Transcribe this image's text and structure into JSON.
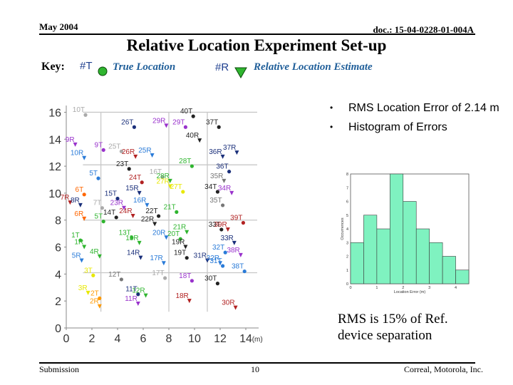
{
  "header": {
    "date": "May 2004",
    "doc_id": "doc.: 15-04-0228-01-004A"
  },
  "title": "Relative Location Experiment Set-up",
  "key": {
    "label": "Key:",
    "true_tag": "#T",
    "true_label": "True Location",
    "est_tag": "#R",
    "est_label": "Relative Location Estimate"
  },
  "bullets": [
    "RMS Location Error of 2.14 m",
    "Histogram of Errors"
  ],
  "rms_note": "RMS is 15% of Ref. device separation",
  "footer": {
    "left": "Submission",
    "page": "10",
    "right": "Correal, Motorola, Inc."
  },
  "chart_data": [
    {
      "type": "scatter",
      "title": "",
      "xlabel": "(m)",
      "ylabel": "",
      "xlim": [
        0,
        15
      ],
      "ylim": [
        0,
        16.5
      ],
      "xticks": [
        0,
        2,
        4,
        6,
        8,
        10,
        12,
        14
      ],
      "yticks": [
        0,
        2,
        4,
        6,
        8,
        10,
        12,
        14,
        16
      ],
      "grid_lines_x": [
        2.7,
        8,
        11
      ],
      "grid_lines_y": [
        4.1,
        8,
        12.1,
        16
      ],
      "true_points": [
        {
          "id": "1T",
          "x": 1.1,
          "y": 6.5,
          "c": "#2fb52f"
        },
        {
          "id": "2T",
          "x": 2.6,
          "y": 2.2,
          "c": "#ff9900"
        },
        {
          "id": "3T",
          "x": 2.1,
          "y": 3.9,
          "c": "#e8e800"
        },
        {
          "id": "5T",
          "x": 2.5,
          "y": 11.1,
          "c": "#2a7bd8"
        },
        {
          "id": "5T",
          "x": 2.9,
          "y": 7.9,
          "c": "#2fb52f"
        },
        {
          "id": "6T",
          "x": 1.4,
          "y": 9.9,
          "c": "#ff6600"
        },
        {
          "id": "7T",
          "x": 2.8,
          "y": 8.9,
          "c": "#aaaaaa"
        },
        {
          "id": "9T",
          "x": 2.9,
          "y": 13.2,
          "c": "#9932cc"
        },
        {
          "id": "10T",
          "x": 1.5,
          "y": 15.8,
          "c": "#aaaaaa"
        },
        {
          "id": "11T",
          "x": 5.6,
          "y": 2.5,
          "c": "#1a2f7a"
        },
        {
          "id": "12T",
          "x": 4.3,
          "y": 3.6,
          "c": "#777777"
        },
        {
          "id": "13T",
          "x": 5.1,
          "y": 6.7,
          "c": "#2fb52f"
        },
        {
          "id": "14T",
          "x": 3.9,
          "y": 8.2,
          "c": "#222222"
        },
        {
          "id": "15T",
          "x": 4.0,
          "y": 9.6,
          "c": "#1a2f7a"
        },
        {
          "id": "16T",
          "x": 7.5,
          "y": 11.2,
          "c": "#aaaaaa"
        },
        {
          "id": "17T",
          "x": 7.7,
          "y": 3.7,
          "c": "#aaaaaa"
        },
        {
          "id": "18T",
          "x": 9.8,
          "y": 3.5,
          "c": "#9932cc"
        },
        {
          "id": "19T",
          "x": 9.4,
          "y": 5.2,
          "c": "#222222"
        },
        {
          "id": "20T",
          "x": 8.9,
          "y": 6.6,
          "c": "#2fb52f"
        },
        {
          "id": "21T",
          "x": 8.6,
          "y": 8.6,
          "c": "#2fb52f"
        },
        {
          "id": "22T",
          "x": 7.2,
          "y": 8.3,
          "c": "#222222"
        },
        {
          "id": "23T",
          "x": 4.9,
          "y": 11.8,
          "c": "#222222"
        },
        {
          "id": "24T",
          "x": 5.9,
          "y": 10.8,
          "c": "#b22222"
        },
        {
          "id": "25T",
          "x": 4.3,
          "y": 13.1,
          "c": "#aaaaaa"
        },
        {
          "id": "26T",
          "x": 5.3,
          "y": 14.9,
          "c": "#1a2f7a"
        },
        {
          "id": "27T",
          "x": 9.1,
          "y": 10.1,
          "c": "#e8e800"
        },
        {
          "id": "28T",
          "x": 9.8,
          "y": 12.0,
          "c": "#2fb52f"
        },
        {
          "id": "29T",
          "x": 9.3,
          "y": 14.9,
          "c": "#9932cc"
        },
        {
          "id": "30T",
          "x": 11.8,
          "y": 3.3,
          "c": "#222222"
        },
        {
          "id": "31T",
          "x": 12.2,
          "y": 4.6,
          "c": "#2a7bd8"
        },
        {
          "id": "32T",
          "x": 12.4,
          "y": 5.6,
          "c": "#2a7bd8"
        },
        {
          "id": "33T",
          "x": 12.1,
          "y": 7.3,
          "c": "#222222"
        },
        {
          "id": "34T",
          "x": 11.8,
          "y": 10.1,
          "c": "#222222"
        },
        {
          "id": "35T",
          "x": 12.2,
          "y": 9.1,
          "c": "#777777"
        },
        {
          "id": "36T",
          "x": 12.7,
          "y": 11.6,
          "c": "#1a2f7a"
        },
        {
          "id": "37T",
          "x": 11.9,
          "y": 14.9,
          "c": "#222222"
        },
        {
          "id": "38T",
          "x": 13.9,
          "y": 4.2,
          "c": "#2a7bd8"
        },
        {
          "id": "39T",
          "x": 13.8,
          "y": 7.8,
          "c": "#b22222"
        },
        {
          "id": "40T",
          "x": 9.9,
          "y": 15.7,
          "c": "#222222"
        }
      ],
      "estimated_points": [
        {
          "id": "1R",
          "x": 1.4,
          "y": 6.0,
          "c": "#2fb52f"
        },
        {
          "id": "2R",
          "x": 2.6,
          "y": 1.6,
          "c": "#ff9900"
        },
        {
          "id": "3R",
          "x": 1.7,
          "y": 2.6,
          "c": "#e8e800"
        },
        {
          "id": "4R",
          "x": 2.6,
          "y": 5.3,
          "c": "#2fb52f"
        },
        {
          "id": "5R",
          "x": 1.2,
          "y": 5.0,
          "c": "#2a7bd8"
        },
        {
          "id": "6R",
          "x": 1.4,
          "y": 8.1,
          "c": "#ff6600"
        },
        {
          "id": "7R",
          "x": 0.3,
          "y": 9.3,
          "c": "#b22222"
        },
        {
          "id": "8R",
          "x": 1.1,
          "y": 9.1,
          "c": "#1a2f7a"
        },
        {
          "id": "9R",
          "x": 0.7,
          "y": 13.6,
          "c": "#9932cc"
        },
        {
          "id": "10R",
          "x": 1.4,
          "y": 12.6,
          "c": "#2a7bd8"
        },
        {
          "id": "11R",
          "x": 5.6,
          "y": 1.8,
          "c": "#9932cc"
        },
        {
          "id": "12R",
          "x": 6.2,
          "y": 2.4,
          "c": "#2fb52f"
        },
        {
          "id": "13R",
          "x": 5.7,
          "y": 6.3,
          "c": "#2fb52f"
        },
        {
          "id": "14R",
          "x": 5.8,
          "y": 5.2,
          "c": "#1a2f7a"
        },
        {
          "id": "15R",
          "x": 5.7,
          "y": 10.0,
          "c": "#1a2f7a"
        },
        {
          "id": "16R",
          "x": 6.3,
          "y": 9.1,
          "c": "#2a7bd8"
        },
        {
          "id": "17R",
          "x": 7.6,
          "y": 4.8,
          "c": "#2a7bd8"
        },
        {
          "id": "18R",
          "x": 9.6,
          "y": 2.0,
          "c": "#b22222"
        },
        {
          "id": "19R",
          "x": 9.3,
          "y": 6.0,
          "c": "#222222"
        },
        {
          "id": "20R",
          "x": 7.8,
          "y": 6.7,
          "c": "#2a7bd8"
        },
        {
          "id": "21R",
          "x": 9.4,
          "y": 7.1,
          "c": "#2fb52f"
        },
        {
          "id": "22R",
          "x": 6.9,
          "y": 7.7,
          "c": "#222222"
        },
        {
          "id": "23R",
          "x": 4.5,
          "y": 8.9,
          "c": "#9932cc"
        },
        {
          "id": "24R",
          "x": 5.2,
          "y": 8.3,
          "c": "#b22222"
        },
        {
          "id": "25R",
          "x": 6.7,
          "y": 12.8,
          "c": "#2a7bd8"
        },
        {
          "id": "26R",
          "x": 5.4,
          "y": 12.7,
          "c": "#b22222"
        },
        {
          "id": "27R",
          "x": 8.1,
          "y": 10.5,
          "c": "#e8e800"
        },
        {
          "id": "28R",
          "x": 8.1,
          "y": 10.9,
          "c": "#2fb52f"
        },
        {
          "id": "29R",
          "x": 7.8,
          "y": 15.0,
          "c": "#9932cc"
        },
        {
          "id": "30R",
          "x": 13.2,
          "y": 1.5,
          "c": "#b22222"
        },
        {
          "id": "31R",
          "x": 11.0,
          "y": 5.0,
          "c": "#1a2f7a"
        },
        {
          "id": "32R",
          "x": 12.0,
          "y": 4.8,
          "c": "#2a7bd8"
        },
        {
          "id": "33R",
          "x": 13.1,
          "y": 6.3,
          "c": "#1a2f7a"
        },
        {
          "id": "34R",
          "x": 12.9,
          "y": 10.0,
          "c": "#9932cc"
        },
        {
          "id": "35R",
          "x": 12.3,
          "y": 10.9,
          "c": "#777777"
        },
        {
          "id": "36R",
          "x": 12.2,
          "y": 12.7,
          "c": "#1a2f7a"
        },
        {
          "id": "37R",
          "x": 13.3,
          "y": 13.0,
          "c": "#1a2f7a"
        },
        {
          "id": "38R",
          "x": 13.6,
          "y": 5.4,
          "c": "#9932cc"
        },
        {
          "id": "39R",
          "x": 12.6,
          "y": 7.3,
          "c": "#b22222"
        },
        {
          "id": "40R",
          "x": 10.4,
          "y": 13.9,
          "c": "#222222"
        }
      ]
    },
    {
      "type": "bar",
      "title": "",
      "xlabel": "Location Error (m)",
      "ylabel": "Occurrences",
      "xlim": [
        0,
        4.5
      ],
      "ylim": [
        0,
        8
      ],
      "xticks": [
        0,
        1,
        2,
        3,
        4
      ],
      "yticks": [
        0,
        1,
        2,
        3,
        4,
        5,
        6,
        7,
        8
      ],
      "bin_width": 0.5,
      "bins": [
        0,
        0.5,
        1.0,
        1.5,
        2.0,
        2.5,
        3.0,
        3.5,
        4.0
      ],
      "values": [
        3,
        5,
        4,
        8,
        6,
        4,
        3,
        2,
        1
      ],
      "color": "#7ff2c0"
    }
  ]
}
